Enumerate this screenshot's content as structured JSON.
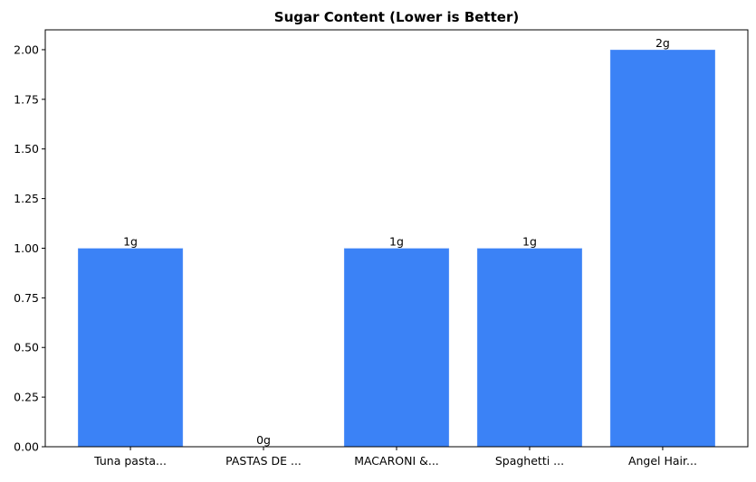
{
  "chart_data": {
    "type": "bar",
    "title": "Sugar Content (Lower is Better)",
    "xlabel": "",
    "ylabel": "",
    "categories": [
      "Tuna pasta...",
      "PASTAS DE ...",
      "MACARONI &...",
      "Spaghetti ...",
      "Angel Hair..."
    ],
    "values": [
      1,
      0,
      1,
      1,
      2
    ],
    "data_labels": [
      "1g",
      "0g",
      "1g",
      "1g",
      "2g"
    ],
    "ylim": [
      0,
      2.1
    ],
    "yticks": [
      "0.00",
      "0.25",
      "0.50",
      "0.75",
      "1.00",
      "1.25",
      "1.50",
      "1.75",
      "2.00"
    ],
    "grid": false,
    "bar_color": "#3b82f6"
  }
}
